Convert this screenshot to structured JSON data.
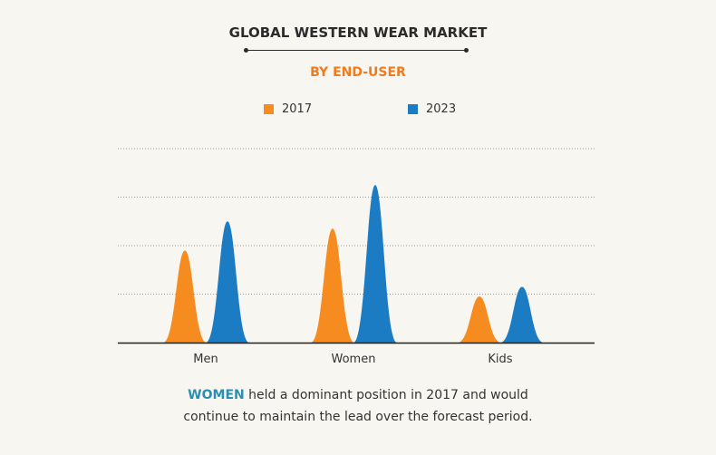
{
  "header": {
    "title": "GLOBAL WESTERN WEAR MARKET",
    "subtitle": "BY END-USER"
  },
  "colors": {
    "accent": "#f07b1e",
    "series_2017": "#f68b1f",
    "series_2023": "#1b7cc4",
    "highlight": "#2a8fb0",
    "text": "#2b2b2b",
    "grid": "#9a9a9a"
  },
  "chart_data": {
    "type": "area",
    "categories": [
      "Men",
      "Women",
      "Kids"
    ],
    "series": [
      {
        "name": "2017",
        "values": [
          1.9,
          2.35,
          0.95
        ]
      },
      {
        "name": "2023",
        "values": [
          2.5,
          3.25,
          1.15
        ]
      }
    ],
    "ylim": [
      0,
      4
    ],
    "grid": true,
    "legend": "top-center"
  },
  "footnote": {
    "highlight": "WOMEN",
    "line1_rest": " held a dominant position in 2017 and would",
    "line2": "continue to maintain the lead over the forecast period."
  }
}
